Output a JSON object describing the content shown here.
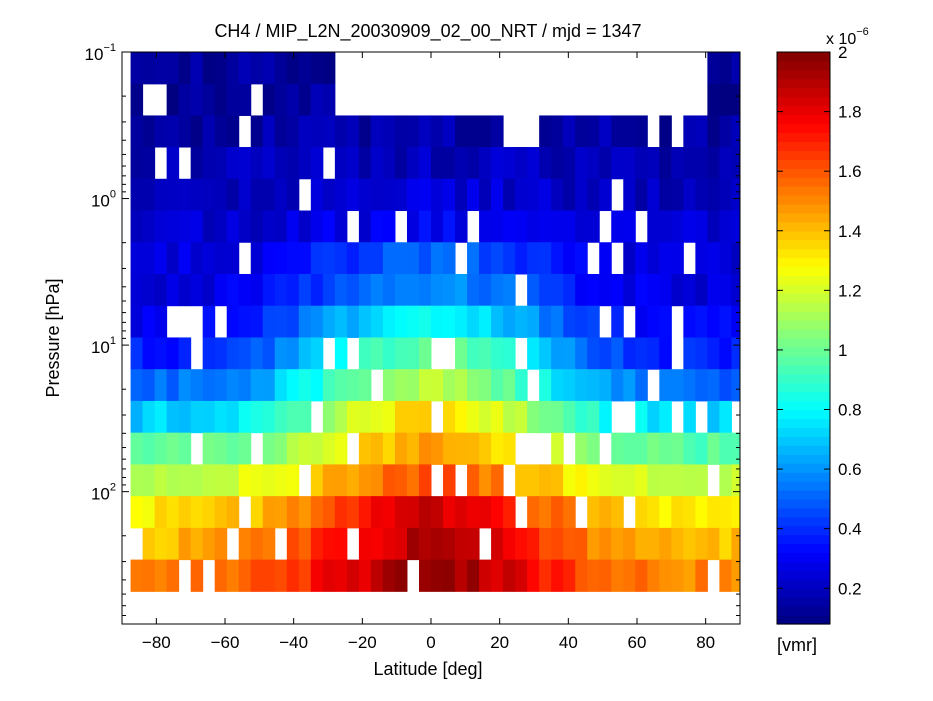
{
  "chart_data": {
    "type": "heatmap",
    "title": "CH4 / MIP_L2N_20030909_02_00_NRT / mjd = 1347",
    "xlabel": "Latitude [deg]",
    "ylabel": "Pressure [hPa]",
    "xlim": [
      -90,
      90
    ],
    "ylim": [
      0.1,
      800
    ],
    "yscale": "log",
    "y_reversed": true,
    "x_ticks": [
      -80,
      -60,
      -40,
      -20,
      0,
      20,
      40,
      60,
      80
    ],
    "x_tick_labels": [
      "−80",
      "−60",
      "−40",
      "−20",
      "0",
      "20",
      "40",
      "60",
      "80"
    ],
    "y_ticks": [
      {
        "base": "10",
        "exp": "−1",
        "value": 0.1
      },
      {
        "base": "10",
        "exp": "0",
        "value": 1
      },
      {
        "base": "10",
        "exp": "1",
        "value": 10
      },
      {
        "base": "10",
        "exp": "2",
        "value": 100
      }
    ],
    "x_edges": [
      -87.5,
      -84.0,
      -80.5,
      -77.0,
      -73.5,
      -70.0,
      -66.5,
      -63.0,
      -59.5,
      -56.0,
      -52.5,
      -49.0,
      -45.5,
      -42.0,
      -38.5,
      -35.0,
      -31.5,
      -28.0,
      -24.5,
      -21.0,
      -17.5,
      -14.0,
      -10.5,
      -7.0,
      -3.5,
      0.0,
      3.5,
      7.0,
      10.5,
      14.0,
      17.5,
      21.0,
      24.5,
      28.0,
      31.5,
      35.0,
      38.5,
      42.0,
      45.5,
      49.0,
      52.5,
      56.0,
      59.5,
      63.0,
      66.5,
      70.0,
      73.5,
      77.0,
      80.5,
      84.0,
      87.5,
      90.0
    ],
    "p_edges": [
      0.1,
      0.165,
      0.271,
      0.445,
      0.733,
      1.207,
      1.987,
      3.271,
      5.385,
      8.867,
      14.6,
      24.04,
      39.58,
      65.17,
      107.3,
      176.7,
      290.9,
      479.0
    ],
    "bands": [
      {
        "p": [
          0.1,
          0.271
        ],
        "v": [
          0.13,
          0.13
        ]
      },
      {
        "p": [
          0.271,
          0.445
        ],
        "v": [
          0.15,
          0.16
        ]
      },
      {
        "p": [
          0.445,
          0.733
        ],
        "v": [
          0.18,
          0.2
        ]
      },
      {
        "p": [
          0.733,
          1.207
        ],
        "v": [
          0.2,
          0.24
        ]
      },
      {
        "p": [
          1.207,
          1.987
        ],
        "v": [
          0.22,
          0.3
        ]
      },
      {
        "p": [
          1.987,
          3.271
        ],
        "v": [
          0.24,
          0.5
        ]
      },
      {
        "p": [
          3.271,
          5.385
        ],
        "v": [
          0.25,
          0.6
        ]
      },
      {
        "p": [
          5.385,
          8.867
        ],
        "v": [
          0.3,
          0.8
        ]
      },
      {
        "p": [
          8.867,
          14.6
        ],
        "v": [
          0.35,
          1.0
        ]
      },
      {
        "p": [
          14.6,
          24.04
        ],
        "v": [
          0.5,
          1.15
        ]
      },
      {
        "p": [
          24.04,
          39.58
        ],
        "v": [
          0.7,
          1.35
        ]
      },
      {
        "p": [
          39.58,
          65.17
        ],
        "v": [
          0.95,
          1.45
        ]
      },
      {
        "p": [
          65.17,
          107.3
        ],
        "v": [
          1.15,
          1.6
        ]
      },
      {
        "p": [
          107.3,
          176.7
        ],
        "v": [
          1.3,
          1.85
        ]
      },
      {
        "p": [
          176.7,
          290.9
        ],
        "v": [
          1.4,
          1.9
        ]
      },
      {
        "p": [
          290.9,
          479.0
        ],
        "v": [
          1.5,
          1.95
        ]
      }
    ],
    "colorbar": {
      "cmap": "jet",
      "clim": [
        0.08,
        2.0
      ],
      "ticks": [
        0.2,
        0.4,
        0.6,
        0.8,
        1,
        1.2,
        1.4,
        1.6,
        1.8,
        2
      ],
      "tick_labels": [
        "0.2",
        "0.4",
        "0.6",
        "0.8",
        "1",
        "1.2",
        "1.4",
        "1.6",
        "1.8",
        "2"
      ],
      "multiplier_base": "x 10",
      "multiplier_exp": "−6",
      "label": "[vmr]"
    },
    "grid": false
  }
}
